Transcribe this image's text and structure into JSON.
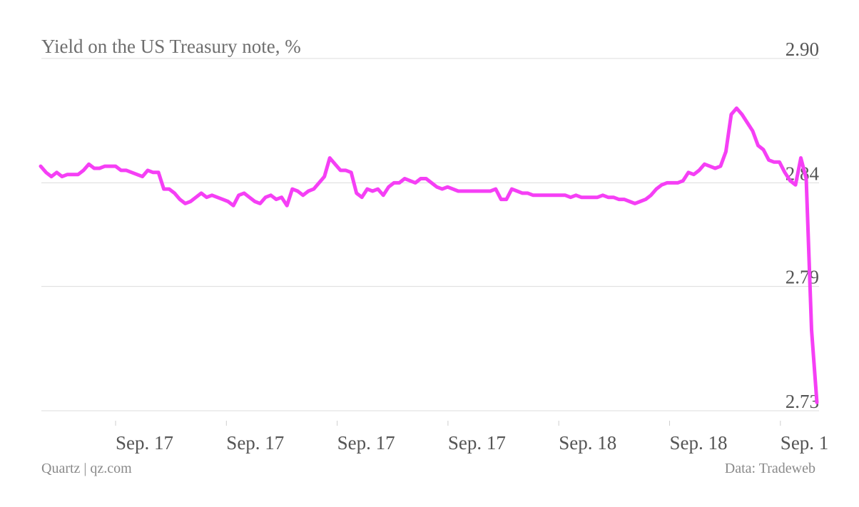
{
  "chart_data": {
    "type": "line",
    "title": "Yield on the US Treasury note, %",
    "xlabel": "",
    "ylabel": "",
    "y_ticks": [
      "2.90",
      "2.84",
      "2.79",
      "2.73"
    ],
    "x_ticks": [
      "Sep. 17",
      "Sep. 17",
      "Sep. 17",
      "Sep. 17",
      "Sep. 18",
      "Sep. 18",
      "Sep. 1"
    ],
    "ylim": [
      2.73,
      2.9
    ],
    "grid": true,
    "y_axis_position": "right",
    "series": [
      {
        "color": "#f53ff5",
        "y": [
          2.848,
          2.845,
          2.843,
          2.845,
          2.843,
          2.844,
          2.844,
          2.844,
          2.846,
          2.849,
          2.847,
          2.847,
          2.848,
          2.848,
          2.848,
          2.846,
          2.846,
          2.845,
          2.844,
          2.843,
          2.846,
          2.845,
          2.845,
          2.837,
          2.837,
          2.835,
          2.832,
          2.83,
          2.831,
          2.833,
          2.835,
          2.833,
          2.834,
          2.833,
          2.832,
          2.831,
          2.829,
          2.834,
          2.835,
          2.833,
          2.831,
          2.83,
          2.833,
          2.834,
          2.832,
          2.833,
          2.829,
          2.837,
          2.836,
          2.834,
          2.836,
          2.837,
          2.84,
          2.843,
          2.852,
          2.849,
          2.846,
          2.846,
          2.845,
          2.835,
          2.833,
          2.837,
          2.836,
          2.837,
          2.834,
          2.838,
          2.84,
          2.84,
          2.842,
          2.841,
          2.84,
          2.842,
          2.842,
          2.84,
          2.838,
          2.837,
          2.838,
          2.837,
          2.836,
          2.836,
          2.836,
          2.836,
          2.836,
          2.836,
          2.836,
          2.837,
          2.832,
          2.832,
          2.837,
          2.836,
          2.835,
          2.835,
          2.834,
          2.834,
          2.834,
          2.834,
          2.834,
          2.834,
          2.834,
          2.833,
          2.834,
          2.833,
          2.833,
          2.833,
          2.833,
          2.834,
          2.833,
          2.833,
          2.832,
          2.832,
          2.831,
          2.83,
          2.831,
          2.832,
          2.834,
          2.837,
          2.839,
          2.84,
          2.84,
          2.84,
          2.841,
          2.845,
          2.844,
          2.846,
          2.849,
          2.848,
          2.847,
          2.848,
          2.855,
          2.873,
          2.876,
          2.873,
          2.869,
          2.865,
          2.858,
          2.856,
          2.851,
          2.85,
          2.85,
          2.845,
          2.841,
          2.839,
          2.852,
          2.842,
          2.769,
          2.734
        ]
      }
    ]
  },
  "footer": {
    "source_left": "Quartz | qz.com",
    "source_right": "Data: Tradeweb"
  }
}
